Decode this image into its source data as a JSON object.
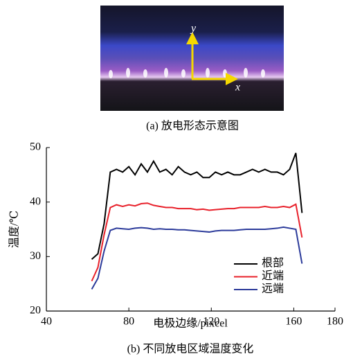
{
  "figure_a": {
    "axis_y": "y",
    "axis_x": "x",
    "caption": "(a) 放电形态示意图"
  },
  "chart_data": {
    "type": "line",
    "caption": "(b) 不同放电区域温度变化",
    "x_label": "电极边缘/pixcel",
    "y_label": "温度/℃",
    "x": [
      62,
      65,
      68,
      71,
      74,
      77,
      80,
      83,
      86,
      89,
      92,
      95,
      98,
      101,
      104,
      107,
      110,
      113,
      116,
      119,
      122,
      125,
      128,
      131,
      134,
      137,
      140,
      143,
      146,
      149,
      152,
      155,
      158,
      161,
      164
    ],
    "series": [
      {
        "name": "根部",
        "color": "#000000",
        "values": [
          29.5,
          30.5,
          36,
          45.5,
          46,
          45.5,
          46.5,
          45,
          47,
          45.5,
          47.5,
          45.5,
          46,
          45,
          46.5,
          45.5,
          45,
          45.5,
          44.5,
          44.5,
          45.5,
          45,
          45.5,
          45,
          45,
          45.5,
          46,
          45.5,
          46,
          45.5,
          45.5,
          45,
          46,
          49,
          38
        ]
      },
      {
        "name": "近端",
        "color": "#e8202a",
        "values": [
          25.5,
          28,
          34,
          39,
          39.5,
          39.2,
          39.5,
          39.3,
          39.7,
          39.8,
          39.4,
          39.2,
          39,
          39,
          38.8,
          38.8,
          38.8,
          38.6,
          38.7,
          38.5,
          38.6,
          38.7,
          38.8,
          38.8,
          39,
          39,
          39,
          39,
          39.2,
          39,
          39,
          39.2,
          39,
          39.6,
          33.5
        ]
      },
      {
        "name": "远端",
        "color": "#2b3a9a",
        "values": [
          24,
          26,
          31,
          34.8,
          35.2,
          35.1,
          35,
          35.2,
          35.3,
          35.2,
          35,
          35.1,
          35,
          35,
          34.9,
          34.9,
          34.8,
          34.7,
          34.6,
          34.5,
          34.7,
          34.8,
          34.8,
          34.8,
          34.9,
          35,
          35,
          35,
          35,
          35.1,
          35.2,
          35.4,
          35.2,
          35,
          28.7
        ]
      }
    ],
    "xlim": [
      40,
      180
    ],
    "ylim": [
      20,
      50
    ],
    "xticks": [
      40,
      80,
      120,
      160,
      180
    ],
    "yticks": [
      20,
      30,
      40,
      50
    ],
    "legend": "lower-right"
  }
}
